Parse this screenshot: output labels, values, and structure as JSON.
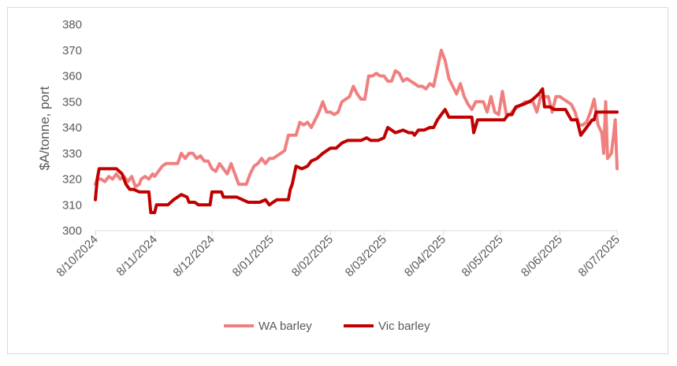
{
  "chart_data": {
    "type": "line",
    "title": "",
    "xlabel": "",
    "ylabel": "$A/tonne, port",
    "ylim": [
      300,
      380
    ],
    "yticks": [
      300,
      310,
      320,
      330,
      340,
      350,
      360,
      370,
      380
    ],
    "xlim": [
      "2024-10-08",
      "2025-07-08"
    ],
    "xticks": [
      {
        "date": "2024-10-08",
        "label": "8/10/2024"
      },
      {
        "date": "2024-11-08",
        "label": "8/11/2024"
      },
      {
        "date": "2024-12-08",
        "label": "8/12/2024"
      },
      {
        "date": "2025-01-08",
        "label": "8/01/2025"
      },
      {
        "date": "2025-02-08",
        "label": "8/02/2025"
      },
      {
        "date": "2025-03-08",
        "label": "8/03/2025"
      },
      {
        "date": "2025-04-08",
        "label": "8/04/2025"
      },
      {
        "date": "2025-05-08",
        "label": "8/05/2025"
      },
      {
        "date": "2025-06-08",
        "label": "8/06/2025"
      },
      {
        "date": "2025-07-08",
        "label": "8/07/2025"
      }
    ],
    "grid": false,
    "legend": "bottom",
    "series": [
      {
        "name": "WA barley",
        "color": "#f08080",
        "points": [
          [
            "2024-10-08",
            318
          ],
          [
            "2024-10-09",
            320
          ],
          [
            "2024-10-11",
            320
          ],
          [
            "2024-10-13",
            319
          ],
          [
            "2024-10-15",
            321
          ],
          [
            "2024-10-17",
            320
          ],
          [
            "2024-10-19",
            322
          ],
          [
            "2024-10-21",
            320
          ],
          [
            "2024-10-23",
            321
          ],
          [
            "2024-10-25",
            319
          ],
          [
            "2024-10-27",
            321
          ],
          [
            "2024-10-29",
            317
          ],
          [
            "2024-10-31",
            318
          ],
          [
            "2024-11-01",
            320
          ],
          [
            "2024-11-03",
            321
          ],
          [
            "2024-11-05",
            320
          ],
          [
            "2024-11-07",
            322
          ],
          [
            "2024-11-08",
            321
          ],
          [
            "2024-11-10",
            323
          ],
          [
            "2024-11-12",
            325
          ],
          [
            "2024-11-14",
            326
          ],
          [
            "2024-11-16",
            326
          ],
          [
            "2024-11-18",
            326
          ],
          [
            "2024-11-20",
            326
          ],
          [
            "2024-11-22",
            330
          ],
          [
            "2024-11-24",
            328
          ],
          [
            "2024-11-26",
            330
          ],
          [
            "2024-11-28",
            330
          ],
          [
            "2024-11-30",
            328
          ],
          [
            "2024-12-02",
            329
          ],
          [
            "2024-12-04",
            327
          ],
          [
            "2024-12-06",
            327
          ],
          [
            "2024-12-08",
            324
          ],
          [
            "2024-12-10",
            323
          ],
          [
            "2024-12-12",
            326
          ],
          [
            "2024-12-14",
            324
          ],
          [
            "2024-12-16",
            322
          ],
          [
            "2024-12-18",
            326
          ],
          [
            "2024-12-20",
            322
          ],
          [
            "2024-12-22",
            318
          ],
          [
            "2024-12-24",
            318
          ],
          [
            "2024-12-26",
            318
          ],
          [
            "2024-12-28",
            322
          ],
          [
            "2024-12-30",
            325
          ],
          [
            "2025-01-01",
            326
          ],
          [
            "2025-01-03",
            328
          ],
          [
            "2025-01-05",
            326
          ],
          [
            "2025-01-07",
            328
          ],
          [
            "2025-01-09",
            328
          ],
          [
            "2025-01-11",
            329
          ],
          [
            "2025-01-13",
            330
          ],
          [
            "2025-01-15",
            331
          ],
          [
            "2025-01-17",
            337
          ],
          [
            "2025-01-19",
            337
          ],
          [
            "2025-01-21",
            337
          ],
          [
            "2025-01-23",
            342
          ],
          [
            "2025-01-25",
            341
          ],
          [
            "2025-01-27",
            342
          ],
          [
            "2025-01-29",
            340
          ],
          [
            "2025-01-31",
            343
          ],
          [
            "2025-02-02",
            346
          ],
          [
            "2025-02-04",
            350
          ],
          [
            "2025-02-06",
            346
          ],
          [
            "2025-02-08",
            346
          ],
          [
            "2025-02-10",
            345
          ],
          [
            "2025-02-12",
            346
          ],
          [
            "2025-02-14",
            350
          ],
          [
            "2025-02-16",
            351
          ],
          [
            "2025-02-18",
            352
          ],
          [
            "2025-02-20",
            356
          ],
          [
            "2025-02-22",
            353
          ],
          [
            "2025-02-24",
            351
          ],
          [
            "2025-02-26",
            351
          ],
          [
            "2025-02-28",
            360
          ],
          [
            "2025-03-02",
            360
          ],
          [
            "2025-03-04",
            361
          ],
          [
            "2025-03-06",
            360
          ],
          [
            "2025-03-08",
            360
          ],
          [
            "2025-03-10",
            358
          ],
          [
            "2025-03-12",
            358
          ],
          [
            "2025-03-14",
            362
          ],
          [
            "2025-03-16",
            361
          ],
          [
            "2025-03-18",
            358
          ],
          [
            "2025-03-20",
            359
          ],
          [
            "2025-03-22",
            358
          ],
          [
            "2025-03-24",
            357
          ],
          [
            "2025-03-26",
            356
          ],
          [
            "2025-03-28",
            356
          ],
          [
            "2025-03-30",
            355
          ],
          [
            "2025-04-01",
            357
          ],
          [
            "2025-04-03",
            356
          ],
          [
            "2025-04-05",
            363
          ],
          [
            "2025-04-07",
            370
          ],
          [
            "2025-04-09",
            366
          ],
          [
            "2025-04-11",
            359
          ],
          [
            "2025-04-13",
            356
          ],
          [
            "2025-04-15",
            353
          ],
          [
            "2025-04-17",
            357
          ],
          [
            "2025-04-19",
            352
          ],
          [
            "2025-04-21",
            349
          ],
          [
            "2025-04-23",
            347
          ],
          [
            "2025-04-25",
            350
          ],
          [
            "2025-04-27",
            350
          ],
          [
            "2025-04-29",
            350
          ],
          [
            "2025-05-01",
            346
          ],
          [
            "2025-05-03",
            352
          ],
          [
            "2025-05-05",
            346
          ],
          [
            "2025-05-07",
            345
          ],
          [
            "2025-05-09",
            354
          ],
          [
            "2025-05-11",
            345
          ],
          [
            "2025-05-13",
            345
          ],
          [
            "2025-05-15",
            347
          ],
          [
            "2025-05-17",
            348
          ],
          [
            "2025-05-19",
            349
          ],
          [
            "2025-05-21",
            350
          ],
          [
            "2025-05-23",
            350
          ],
          [
            "2025-05-25",
            350
          ],
          [
            "2025-05-27",
            346
          ],
          [
            "2025-05-29",
            352
          ],
          [
            "2025-05-31",
            352
          ],
          [
            "2025-06-02",
            352
          ],
          [
            "2025-06-04",
            346
          ],
          [
            "2025-06-06",
            352
          ],
          [
            "2025-06-08",
            352
          ],
          [
            "2025-06-10",
            351
          ],
          [
            "2025-06-12",
            350
          ],
          [
            "2025-06-14",
            349
          ],
          [
            "2025-06-16",
            346
          ],
          [
            "2025-06-18",
            341
          ],
          [
            "2025-06-20",
            341
          ],
          [
            "2025-06-22",
            342
          ],
          [
            "2025-06-24",
            346
          ],
          [
            "2025-06-26",
            351
          ],
          [
            "2025-06-28",
            341
          ],
          [
            "2025-06-30",
            338
          ],
          [
            "2025-07-01",
            330
          ],
          [
            "2025-07-02",
            350
          ],
          [
            "2025-07-03",
            328
          ],
          [
            "2025-07-05",
            330
          ],
          [
            "2025-07-06",
            336
          ],
          [
            "2025-07-07",
            343
          ],
          [
            "2025-07-08",
            324
          ]
        ]
      },
      {
        "name": "Vic barley",
        "color": "#c00000",
        "points": [
          [
            "2024-10-08",
            312
          ],
          [
            "2024-10-09",
            320
          ],
          [
            "2024-10-10",
            324
          ],
          [
            "2024-10-13",
            324
          ],
          [
            "2024-10-16",
            324
          ],
          [
            "2024-10-19",
            324
          ],
          [
            "2024-10-22",
            322
          ],
          [
            "2024-10-24",
            318
          ],
          [
            "2024-10-26",
            316
          ],
          [
            "2024-10-28",
            316
          ],
          [
            "2024-10-31",
            315
          ],
          [
            "2024-11-03",
            315
          ],
          [
            "2024-11-05",
            315
          ],
          [
            "2024-11-06",
            307
          ],
          [
            "2024-11-08",
            307
          ],
          [
            "2024-11-09",
            310
          ],
          [
            "2024-11-12",
            310
          ],
          [
            "2024-11-15",
            310
          ],
          [
            "2024-11-18",
            312
          ],
          [
            "2024-11-20",
            313
          ],
          [
            "2024-11-22",
            314
          ],
          [
            "2024-11-25",
            313
          ],
          [
            "2024-11-26",
            311
          ],
          [
            "2024-11-29",
            311
          ],
          [
            "2024-12-01",
            310
          ],
          [
            "2024-12-04",
            310
          ],
          [
            "2024-12-07",
            310
          ],
          [
            "2024-12-08",
            315
          ],
          [
            "2024-12-11",
            315
          ],
          [
            "2024-12-13",
            315
          ],
          [
            "2024-12-14",
            313
          ],
          [
            "2024-12-17",
            313
          ],
          [
            "2024-12-21",
            313
          ],
          [
            "2024-12-24",
            312
          ],
          [
            "2024-12-27",
            311
          ],
          [
            "2024-12-30",
            311
          ],
          [
            "2025-01-02",
            311
          ],
          [
            "2025-01-05",
            312
          ],
          [
            "2025-01-07",
            310
          ],
          [
            "2025-01-09",
            311
          ],
          [
            "2025-01-11",
            312
          ],
          [
            "2025-01-14",
            312
          ],
          [
            "2025-01-17",
            312
          ],
          [
            "2025-01-18",
            316
          ],
          [
            "2025-01-19",
            318
          ],
          [
            "2025-01-21",
            325
          ],
          [
            "2025-01-24",
            324
          ],
          [
            "2025-01-27",
            325
          ],
          [
            "2025-01-29",
            327
          ],
          [
            "2025-02-01",
            328
          ],
          [
            "2025-02-04",
            330
          ],
          [
            "2025-02-06",
            331
          ],
          [
            "2025-02-08",
            332
          ],
          [
            "2025-02-11",
            332
          ],
          [
            "2025-02-14",
            334
          ],
          [
            "2025-02-17",
            335
          ],
          [
            "2025-02-20",
            335
          ],
          [
            "2025-02-24",
            335
          ],
          [
            "2025-02-27",
            336
          ],
          [
            "2025-03-01",
            335
          ],
          [
            "2025-03-05",
            335
          ],
          [
            "2025-03-08",
            336
          ],
          [
            "2025-03-10",
            340
          ],
          [
            "2025-03-12",
            339
          ],
          [
            "2025-03-14",
            338
          ],
          [
            "2025-03-18",
            339
          ],
          [
            "2025-03-21",
            338
          ],
          [
            "2025-03-23",
            338
          ],
          [
            "2025-03-24",
            337
          ],
          [
            "2025-03-26",
            339
          ],
          [
            "2025-03-29",
            339
          ],
          [
            "2025-04-01",
            340
          ],
          [
            "2025-04-03",
            340
          ],
          [
            "2025-04-05",
            343
          ],
          [
            "2025-04-07",
            345
          ],
          [
            "2025-04-09",
            347
          ],
          [
            "2025-04-11",
            344
          ],
          [
            "2025-04-14",
            344
          ],
          [
            "2025-04-17",
            344
          ],
          [
            "2025-04-20",
            344
          ],
          [
            "2025-04-23",
            344
          ],
          [
            "2025-04-24",
            338
          ],
          [
            "2025-04-26",
            343
          ],
          [
            "2025-04-29",
            343
          ],
          [
            "2025-05-03",
            343
          ],
          [
            "2025-05-07",
            343
          ],
          [
            "2025-05-10",
            343
          ],
          [
            "2025-05-12",
            345
          ],
          [
            "2025-05-14",
            345
          ],
          [
            "2025-05-16",
            348
          ],
          [
            "2025-05-20",
            349
          ],
          [
            "2025-05-23",
            350
          ],
          [
            "2025-05-25",
            351
          ],
          [
            "2025-05-28",
            353
          ],
          [
            "2025-05-30",
            355
          ],
          [
            "2025-05-31",
            348
          ],
          [
            "2025-06-03",
            348
          ],
          [
            "2025-06-05",
            347
          ],
          [
            "2025-06-08",
            347
          ],
          [
            "2025-06-11",
            347
          ],
          [
            "2025-06-14",
            343
          ],
          [
            "2025-06-17",
            343
          ],
          [
            "2025-06-19",
            337
          ],
          [
            "2025-06-22",
            340
          ],
          [
            "2025-06-25",
            343
          ],
          [
            "2025-06-26",
            343
          ],
          [
            "2025-06-27",
            346
          ],
          [
            "2025-07-01",
            346
          ],
          [
            "2025-07-04",
            346
          ],
          [
            "2025-07-08",
            346
          ]
        ]
      }
    ]
  }
}
